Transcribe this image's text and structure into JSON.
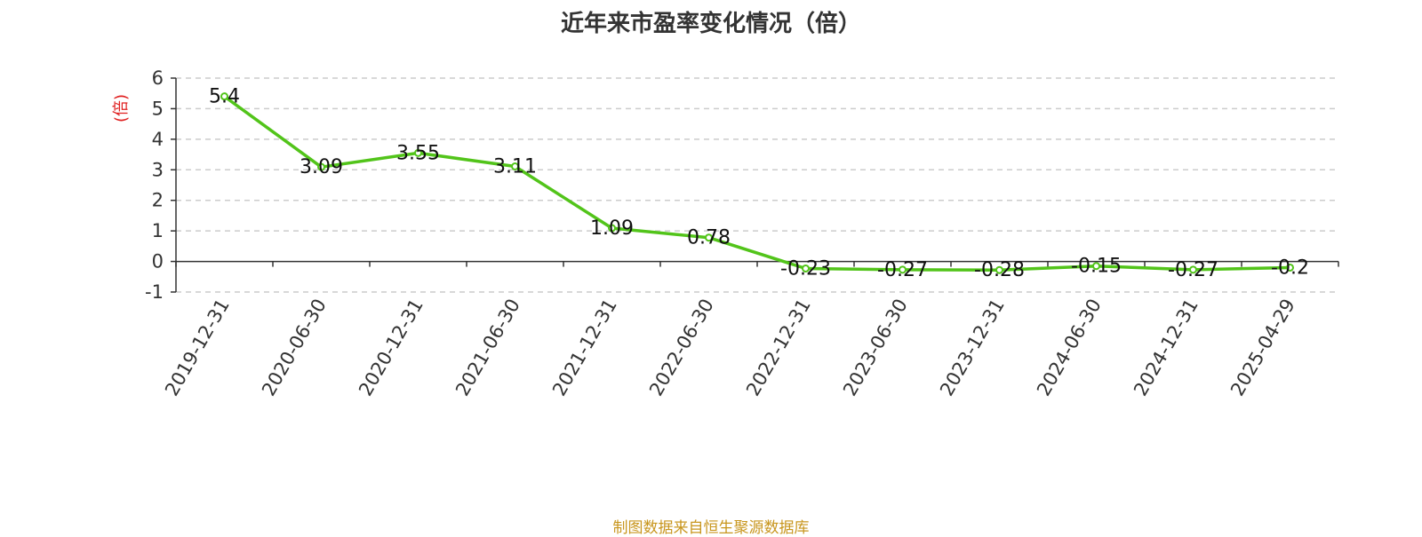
{
  "title": "近年来市盈率变化情况（倍）",
  "source_note": "制图数据来自恒生聚源数据库",
  "colors": {
    "line": "#52c41a",
    "grid": "#cccccc",
    "axis": "#333333",
    "unit": "#e02020",
    "source": "#c8961e"
  },
  "chart_data": {
    "type": "line",
    "title": "近年来市盈率变化情况（倍）",
    "ylabel": "(倍)",
    "xlabel": "",
    "ylim": [
      -1,
      6
    ],
    "yticks": [
      -1,
      0,
      1,
      2,
      3,
      4,
      5,
      6
    ],
    "grid": true,
    "categories": [
      "2019-12-31",
      "2020-06-30",
      "2020-12-31",
      "2021-06-30",
      "2021-12-31",
      "2022-06-30",
      "2022-12-31",
      "2023-06-30",
      "2023-12-31",
      "2024-06-30",
      "2024-12-31",
      "2025-04-29"
    ],
    "values": [
      5.4,
      3.09,
      3.55,
      3.11,
      1.09,
      0.78,
      -0.23,
      -0.27,
      -0.28,
      -0.15,
      -0.27,
      -0.2
    ],
    "data_labels": [
      "5.4",
      "3.09",
      "3.55",
      "3.11",
      "1.09",
      "0.78",
      "-0.23",
      "-0.27",
      "-0.28",
      "-0.15",
      "-0.27",
      "-0.2"
    ]
  }
}
